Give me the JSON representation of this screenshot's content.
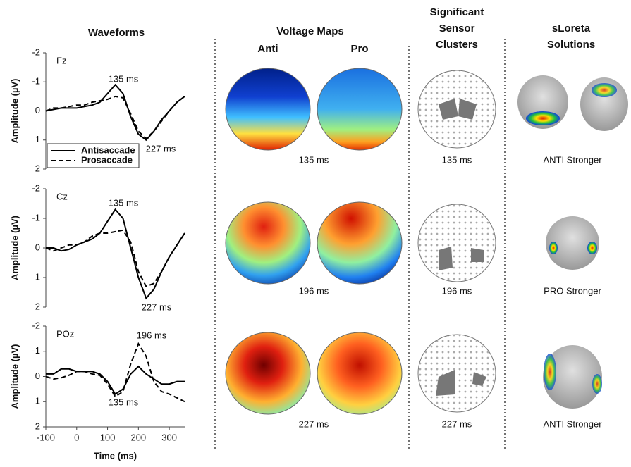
{
  "headers": {
    "waveforms": "Waveforms",
    "voltage_maps": "Voltage Maps",
    "anti": "Anti",
    "pro": "Pro",
    "clusters": [
      "Significant",
      "Sensor",
      "Clusters"
    ],
    "sloreta": [
      "sLoreta",
      "Solutions"
    ]
  },
  "rows": [
    {
      "map_time": "135 ms",
      "cluster_time": "135 ms",
      "source_label": "ANTI Stronger"
    },
    {
      "map_time": "196 ms",
      "cluster_time": "196 ms",
      "source_label": "PRO Stronger"
    },
    {
      "map_time": "227 ms",
      "cluster_time": "227 ms",
      "source_label": "ANTI Stronger"
    }
  ],
  "chart_data": [
    {
      "type": "line",
      "channel": "Fz",
      "ylabel": "Amplitude (µV)",
      "xlim": [
        -100,
        350
      ],
      "ylim": [
        -2,
        2
      ],
      "y_inverted": true,
      "yticks": [
        -2,
        -1,
        0,
        1,
        2
      ],
      "legend": "lower left",
      "x": [
        -100,
        -75,
        -50,
        -25,
        0,
        25,
        50,
        75,
        100,
        125,
        150,
        175,
        200,
        225,
        250,
        275,
        300,
        325,
        350
      ],
      "series": [
        {
          "name": "Antisaccade",
          "color": "#000000",
          "line_style": "solid",
          "values": [
            0,
            -0.05,
            -0.1,
            -0.1,
            -0.1,
            -0.15,
            -0.2,
            -0.3,
            -0.6,
            -0.9,
            -0.6,
            0.2,
            0.8,
            1.0,
            0.7,
            0.3,
            0,
            -0.3,
            -0.5
          ]
        },
        {
          "name": "Prosaccade",
          "color": "#000000",
          "line_style": "dashed",
          "values": [
            0,
            -0.1,
            -0.1,
            -0.15,
            -0.2,
            -0.2,
            -0.3,
            -0.35,
            -0.4,
            -0.5,
            -0.45,
            0.1,
            0.7,
            0.95,
            0.7,
            0.35,
            0,
            -0.3,
            -0.5
          ]
        }
      ],
      "annotations": [
        "135 ms",
        "227 ms"
      ]
    },
    {
      "type": "line",
      "channel": "Cz",
      "ylabel": "Amplitude (µV)",
      "xlim": [
        -100,
        350
      ],
      "ylim": [
        -2,
        2
      ],
      "y_inverted": true,
      "yticks": [
        -2,
        -1,
        0,
        1,
        2
      ],
      "x": [
        -100,
        -75,
        -50,
        -25,
        0,
        25,
        50,
        75,
        100,
        125,
        150,
        175,
        200,
        225,
        250,
        275,
        300,
        325,
        350
      ],
      "series": [
        {
          "color": "#000000",
          "line_style": "solid",
          "values": [
            0,
            0,
            0.1,
            0.05,
            -0.1,
            -0.2,
            -0.3,
            -0.5,
            -0.9,
            -1.3,
            -1.0,
            0,
            1.0,
            1.7,
            1.4,
            0.8,
            0.3,
            -0.1,
            -0.5
          ]
        },
        {
          "color": "#000000",
          "line_style": "dashed",
          "values": [
            0,
            0.1,
            0,
            -0.1,
            -0.1,
            -0.2,
            -0.4,
            -0.5,
            -0.5,
            -0.55,
            -0.6,
            -0.2,
            0.8,
            1.3,
            1.2,
            0.8,
            0.3,
            -0.1,
            -0.5
          ]
        }
      ],
      "annotations": [
        "135 ms",
        "227 ms"
      ]
    },
    {
      "type": "line",
      "channel": "POz",
      "ylabel": "Amplitude (µV)",
      "xlabel": "Time (ms)",
      "xlim": [
        -100,
        350
      ],
      "ylim": [
        -2,
        2
      ],
      "y_inverted": true,
      "yticks": [
        -2,
        -1,
        0,
        1,
        2
      ],
      "xticks": [
        -100,
        0,
        100,
        200,
        300
      ],
      "x": [
        -100,
        -75,
        -50,
        -25,
        0,
        25,
        50,
        75,
        100,
        125,
        150,
        175,
        200,
        225,
        250,
        275,
        300,
        325,
        350
      ],
      "series": [
        {
          "color": "#000000",
          "line_style": "solid",
          "values": [
            -0.1,
            -0.1,
            -0.3,
            -0.3,
            -0.2,
            -0.2,
            -0.2,
            -0.1,
            0.2,
            0.7,
            0.5,
            -0.1,
            -0.4,
            -0.1,
            0.1,
            0.3,
            0.3,
            0.2,
            0.2
          ]
        },
        {
          "color": "#000000",
          "line_style": "dashed",
          "values": [
            0,
            0.1,
            0.05,
            -0.05,
            -0.2,
            -0.2,
            -0.1,
            -0.05,
            0.3,
            0.8,
            0.6,
            -0.5,
            -1.3,
            -0.8,
            0.2,
            0.6,
            0.7,
            0.85,
            1.0
          ]
        }
      ],
      "annotations": [
        "196 ms",
        "135 ms"
      ]
    }
  ]
}
